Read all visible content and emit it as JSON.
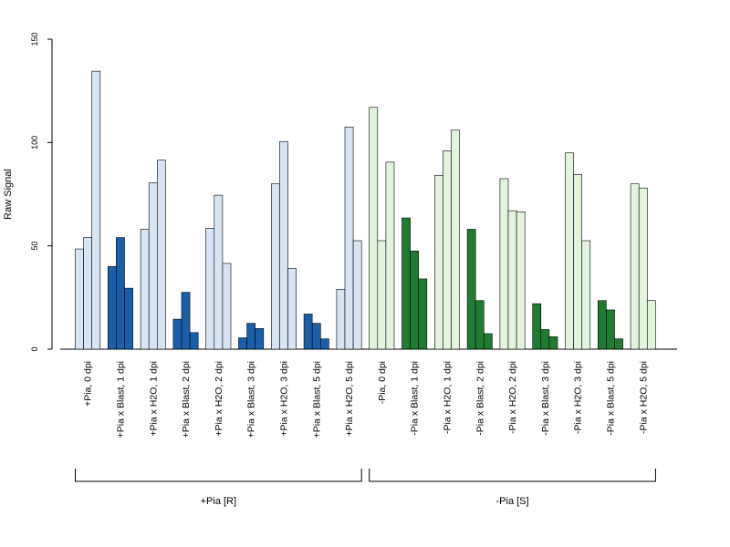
{
  "chart_data": {
    "type": "bar",
    "ylabel": "Raw Signal",
    "ylim": [
      0,
      150
    ],
    "yticks": [
      0,
      50,
      100,
      150
    ],
    "grid": false,
    "legend": "none",
    "replicates_per_category": 3,
    "categories": [
      "+Pia, 0 dpi",
      "+Pia x Blast, 1 dpi",
      "+Pia x H2O, 1 dpi",
      "+Pia x Blast, 2 dpi",
      "+Pia x H2O, 2 dpi",
      "+Pia x Blast, 3 dpi",
      "+Pia x H2O, 3 dpi",
      "+Pia x Blast, 5 dpi",
      "+Pia x H2O, 5 dpi",
      "-Pia, 0 dpi",
      "-Pia x Blast, 1 dpi",
      "-Pia x H2O, 1 dpi",
      "-Pia x Blast, 2 dpi",
      "-Pia x H2O, 2 dpi",
      "-Pia x Blast, 3 dpi",
      "-Pia x H2O, 3 dpi",
      "-Pia x Blast, 5 dpi",
      "-Pia x H2O, 5 dpi"
    ],
    "values": [
      [
        48.5,
        54,
        134.5
      ],
      [
        40,
        54,
        29.5
      ],
      [
        58,
        80.5,
        91.5
      ],
      [
        14.5,
        27.5,
        8
      ],
      [
        58.5,
        74.5,
        41.5
      ],
      [
        5.5,
        12.5,
        10
      ],
      [
        80,
        100.5,
        39
      ],
      [
        17,
        12.5,
        5
      ],
      [
        29,
        107.5,
        52.5
      ],
      [
        117,
        52.5,
        90.5
      ],
      [
        63.5,
        47.5,
        34
      ],
      [
        84,
        96,
        106
      ],
      [
        58,
        23.5,
        7.5
      ],
      [
        82.5,
        67,
        66.5
      ],
      [
        22,
        9.5,
        6
      ],
      [
        95,
        84.5,
        52.5
      ],
      [
        23.5,
        19,
        5
      ],
      [
        80,
        78,
        23.5
      ]
    ],
    "colors": [
      "#d6e4f4",
      "#1a5ea9",
      "#e2f5dc",
      "#217a32"
    ],
    "groups": [
      {
        "label": "+Pia [R]",
        "from": 0,
        "to": 8
      },
      {
        "label": "-Pia [S]",
        "from": 9,
        "to": 17
      }
    ]
  }
}
